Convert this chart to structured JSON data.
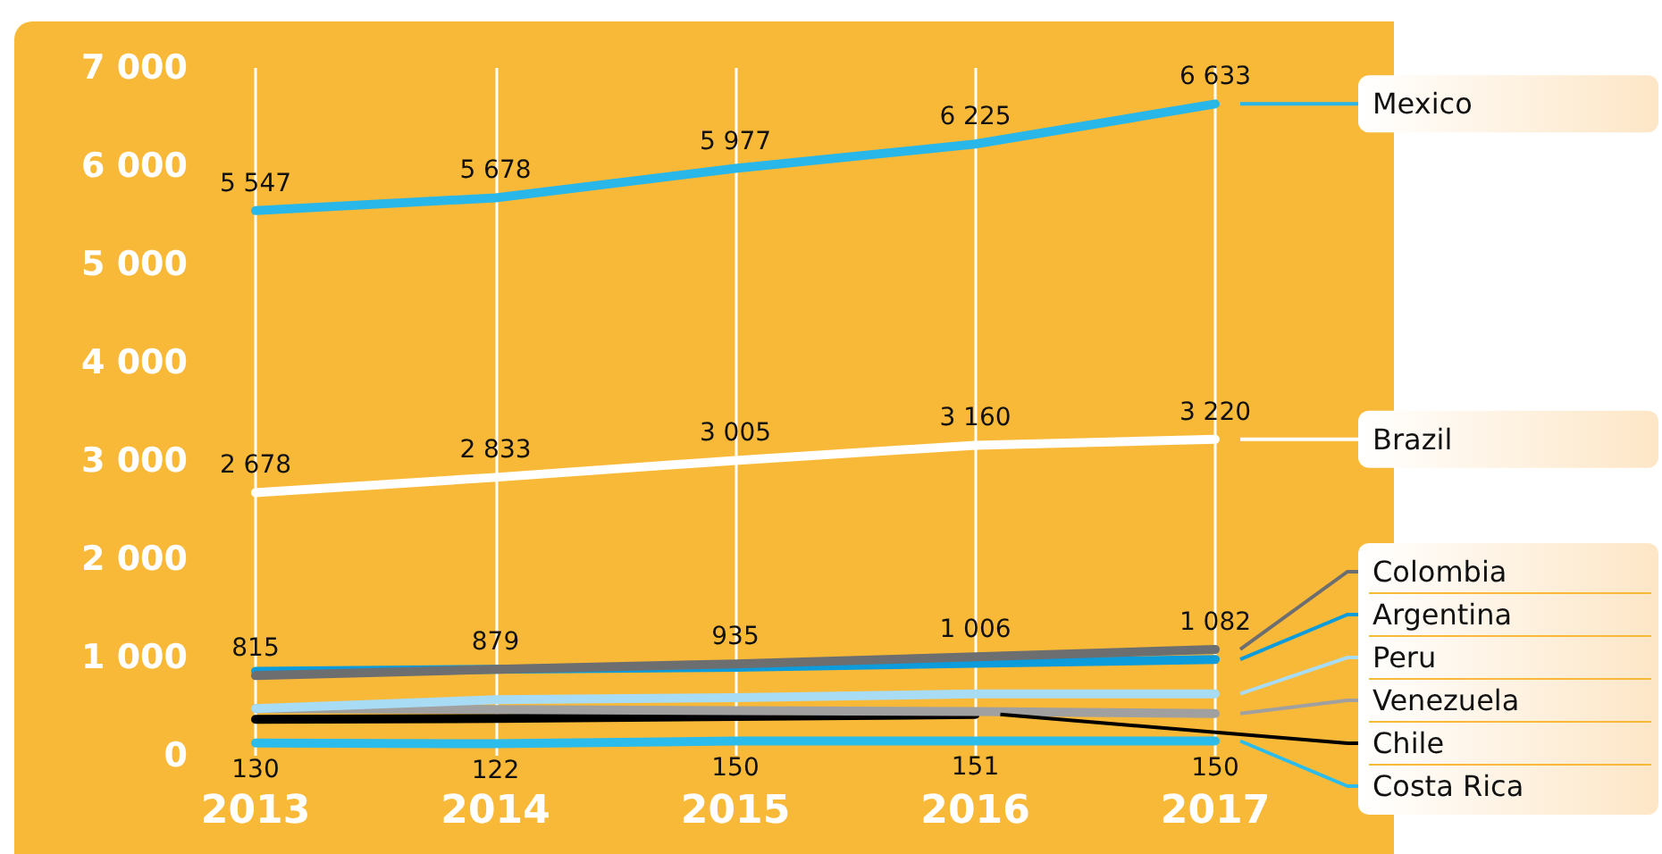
{
  "chart_data": {
    "type": "line",
    "categories": [
      "2013",
      "2014",
      "2015",
      "2016",
      "2017"
    ],
    "ylim": [
      0,
      7000
    ],
    "yticks": [
      {
        "value": 0,
        "label": "0"
      },
      {
        "value": 1000,
        "label": "1 000"
      },
      {
        "value": 2000,
        "label": "2 000"
      },
      {
        "value": 3000,
        "label": "3 000"
      },
      {
        "value": 4000,
        "label": "4 000"
      },
      {
        "value": 5000,
        "label": "5 000"
      },
      {
        "value": 6000,
        "label": "6 000"
      },
      {
        "value": 7000,
        "label": "7 000"
      }
    ],
    "grid": "x",
    "marker": "none",
    "line_style": "solid",
    "legend": "right",
    "series": [
      {
        "name": "Mexico",
        "color": "#29b6e8",
        "values": [
          5547,
          5678,
          5977,
          6225,
          6633
        ],
        "value_labels": [
          "5 547",
          "5 678",
          "5 977",
          "6 225",
          "6 633"
        ]
      },
      {
        "name": "Brazil",
        "color": "#ffffff",
        "values": [
          2678,
          2833,
          3005,
          3160,
          3220
        ],
        "value_labels": [
          "2 678",
          "2 833",
          "3 005",
          "3 160",
          "3 220"
        ]
      },
      {
        "name": "Colombia",
        "color": "#6d6e70",
        "values": [
          815,
          879,
          935,
          1006,
          1082
        ],
        "value_labels": [
          "815",
          "879",
          "935",
          "1 006",
          "1 082"
        ]
      },
      {
        "name": "Argentina",
        "color": "#0c9bdb",
        "values": [
          860,
          880,
          900,
          940,
          980
        ]
      },
      {
        "name": "Peru",
        "color": "#a8dcf4",
        "values": [
          480,
          570,
          590,
          630,
          630
        ]
      },
      {
        "name": "Venezuela",
        "color": "#a0a0a0",
        "values": [
          480,
          470,
          460,
          450,
          430
        ]
      },
      {
        "name": "Chile",
        "color": "#000000",
        "values": [
          370,
          380,
          400,
          420,
          null
        ]
      },
      {
        "name": "Costa Rica",
        "color": "#2bbcec",
        "values": [
          130,
          122,
          150,
          151,
          150
        ],
        "value_labels": [
          "130",
          "122",
          "150",
          "151",
          "150"
        ]
      }
    ]
  }
}
